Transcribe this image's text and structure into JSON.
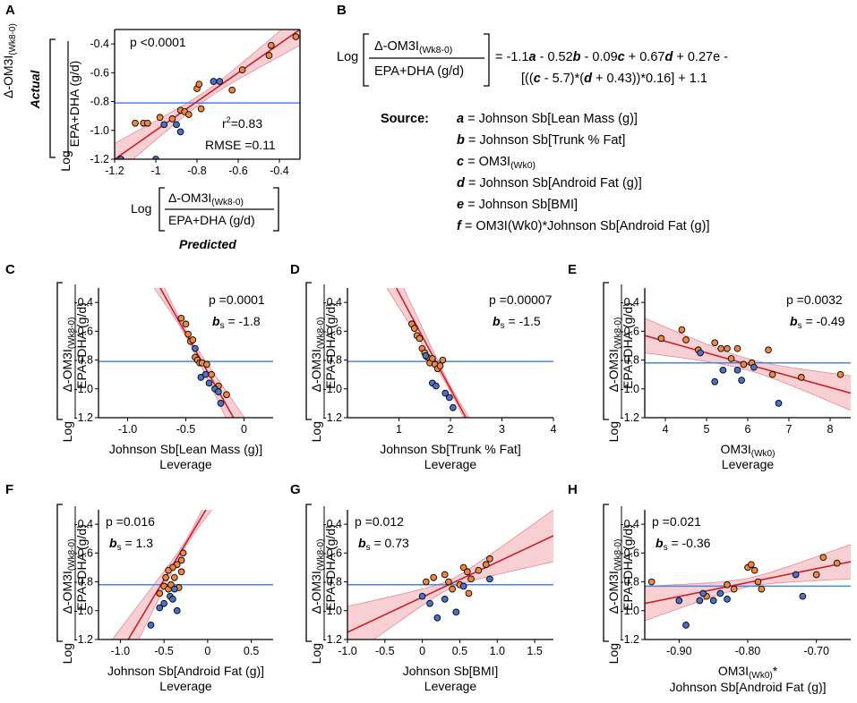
{
  "colors": {
    "orange": "#f0873c",
    "blue": "#4a72c9",
    "fit": "#c8202a",
    "band": "#f7c8cc",
    "mean": "#4a86e0"
  },
  "panel_a": {
    "letter": "A",
    "ylabel_italic": "Actual",
    "log_label": "Log",
    "ratio_num": "Δ-OM3I",
    "ratio_sub": "(Wk8-0)",
    "ratio_den": "EPA+DHA (g/d)",
    "p_text": "p <0.0001",
    "r2_text": "r",
    "r2_sup": "2",
    "r2_value": "=0.83",
    "rmse_text": "RMSE =0.11",
    "xlabel_italic": "Predicted"
  },
  "panel_b": {
    "letter": "B",
    "log_label": "Log",
    "ratio_num": "Δ-OM3I",
    "ratio_sub": "(Wk8-0)",
    "ratio_den": "EPA+DHA (g/d)",
    "eq_line1_parts": [
      "= -1.1",
      "a",
      " - 0.52",
      "b",
      " - 0.09",
      "c",
      " + 0.67",
      "d",
      " + 0.27e -"
    ],
    "eq_line2_parts": [
      "[((",
      "c",
      " - 5.7)*(",
      "d",
      " + 0.43))*0.16] + 1.1"
    ],
    "source_label": "Source:",
    "sources": [
      {
        "var": "a",
        "text": " = Johnson Sb[Lean Mass (g)]",
        "sub": ""
      },
      {
        "var": "b",
        "text": " = Johnson Sb[Trunk % Fat]",
        "sub": ""
      },
      {
        "var": "c",
        "text": " = OM3I",
        "sub": "(Wk0)"
      },
      {
        "var": "d",
        "text": " = Johnson Sb[Android Fat (g)]",
        "sub": ""
      },
      {
        "var": "e",
        "text": " = Johnson Sb[BMI]",
        "sub": ""
      },
      {
        "var": "f",
        "text": " = OM3I(Wk0)*Johnson Sb[Android Fat (g)]",
        "sub": ""
      }
    ]
  },
  "leverage_panels": {
    "ylabel_log": "Log",
    "ylabel_num": "Δ-OM3I",
    "ylabel_sub": "(Wk8-0)",
    "ylabel_den": "EPA+DHA (g/d)",
    "leverage_word": "Leverage",
    "bs_label": "b",
    "bs_sub": "s"
  },
  "chart_data": [
    {
      "id": "A",
      "type": "scatter",
      "xlabel": "Log [Δ-OM3I(Wk8-0) / EPA+DHA (g/d)] Predicted",
      "ylabel": "Actual Log [Δ-OM3I(Wk8-0) / EPA+DHA (g/d)]",
      "xlim": [
        -1.2,
        -0.3
      ],
      "ylim": [
        -1.2,
        -0.3
      ],
      "xticks": [
        -1.2,
        -1,
        -0.8,
        -0.6,
        -0.4
      ],
      "xticklabels": [
        "-1.2",
        "-1",
        "-0.8",
        "-0.6",
        "-0.4"
      ],
      "yticks": [
        -0.4,
        -0.6,
        -0.8,
        -1.0,
        -1.2
      ],
      "yticklabels": [
        "-0.4",
        "-0.6",
        "-0.8",
        "-1.0",
        "-1.2"
      ],
      "mean_line": -0.81,
      "fit": [
        [
          -1.2,
          -1.2
        ],
        [
          -0.3,
          -0.3
        ]
      ],
      "band_halfwidth_mid": 0.03,
      "band_halfwidth_end": 0.11,
      "points_orange": [
        [
          -1.1,
          -0.95
        ],
        [
          -1.06,
          -0.95
        ],
        [
          -1.04,
          -0.95
        ],
        [
          -0.98,
          -0.91
        ],
        [
          -0.92,
          -0.92
        ],
        [
          -0.88,
          -0.86
        ],
        [
          -0.86,
          -0.87
        ],
        [
          -0.84,
          -0.89
        ],
        [
          -0.8,
          -0.71
        ],
        [
          -0.79,
          -0.68
        ],
        [
          -0.78,
          -0.85
        ],
        [
          -0.63,
          -0.72
        ],
        [
          -0.58,
          -0.58
        ],
        [
          -0.45,
          -0.48
        ],
        [
          -0.44,
          -0.41
        ],
        [
          -0.32,
          -0.35
        ]
      ],
      "points_blue": [
        [
          -1.17,
          -1.2
        ],
        [
          -1.0,
          -1.2
        ],
        [
          -0.96,
          -0.96
        ],
        [
          -0.9,
          -0.96
        ],
        [
          -0.88,
          -1.01
        ],
        [
          -0.72,
          -0.66
        ],
        [
          -0.69,
          -0.66
        ]
      ]
    },
    {
      "id": "C",
      "type": "scatter",
      "xlabel": "Johnson Sb[Lean Mass (g)]",
      "xlim": [
        -1.25,
        0.25
      ],
      "ylim": [
        -1.2,
        -0.3
      ],
      "xticks": [
        -1.0,
        -0.5,
        0
      ],
      "xticklabels": [
        "-1.0",
        "-0.5",
        "0"
      ],
      "yticks": [
        -0.4,
        -0.6,
        -0.8,
        -1.0,
        -1.2
      ],
      "yticklabels": [
        "-0.4",
        "-0.6",
        "-0.8",
        "-1.0",
        "-1.2"
      ],
      "mean_line": -0.81,
      "fit": [
        [
          -0.72,
          -0.3
        ],
        [
          -0.09,
          -1.2
        ]
      ],
      "p_text": "p =0.0001",
      "bs_value": "= -1.8",
      "stat_side": "right",
      "band_halfwidth_mid": 0.02,
      "band_halfwidth_end": 0.2,
      "points_orange": [
        [
          -0.54,
          -0.51
        ],
        [
          -0.5,
          -0.55
        ],
        [
          -0.48,
          -0.62
        ],
        [
          -0.46,
          -0.67
        ],
        [
          -0.44,
          -0.66
        ],
        [
          -0.42,
          -0.78
        ],
        [
          -0.4,
          -0.8
        ],
        [
          -0.38,
          -0.82
        ],
        [
          -0.36,
          -0.82
        ],
        [
          -0.32,
          -0.83
        ],
        [
          -0.28,
          -0.9
        ],
        [
          -0.22,
          -0.98
        ],
        [
          -0.15,
          -1.04
        ]
      ],
      "points_blue": [
        [
          -0.42,
          -0.72
        ],
        [
          -0.37,
          -0.92
        ],
        [
          -0.33,
          -0.9
        ],
        [
          -0.3,
          -0.96
        ],
        [
          -0.25,
          -1.0
        ],
        [
          -0.22,
          -1.02
        ],
        [
          -0.2,
          -1.1
        ]
      ]
    },
    {
      "id": "D",
      "type": "scatter",
      "xlabel": "Johnson Sb[Trunk % Fat]",
      "xlim": [
        0,
        4
      ],
      "ylim": [
        -1.2,
        -0.3
      ],
      "xticks": [
        1,
        2,
        3,
        4
      ],
      "xticklabels": [
        "1",
        "2",
        "3",
        "4"
      ],
      "yticks": [
        -0.4,
        -0.6,
        -0.8,
        -1.0,
        -1.2
      ],
      "yticklabels": [
        "-0.4",
        "-0.6",
        "-0.8",
        "-1.0",
        "-1.2"
      ],
      "mean_line": -0.81,
      "fit": [
        [
          0.95,
          -0.3
        ],
        [
          2.3,
          -1.2
        ]
      ],
      "p_text": "p =0.00007",
      "bs_value": "= -1.5",
      "stat_side": "right",
      "band_halfwidth_mid": 0.02,
      "band_halfwidth_end": 0.2,
      "points_orange": [
        [
          1.25,
          -0.55
        ],
        [
          1.3,
          -0.58
        ],
        [
          1.35,
          -0.63
        ],
        [
          1.4,
          -0.65
        ],
        [
          1.45,
          -0.72
        ],
        [
          1.5,
          -0.75
        ],
        [
          1.55,
          -0.78
        ],
        [
          1.6,
          -0.82
        ],
        [
          1.65,
          -0.79
        ],
        [
          1.7,
          -0.83
        ],
        [
          1.75,
          -0.86
        ],
        [
          1.8,
          -0.84
        ],
        [
          1.85,
          -0.8
        ]
      ],
      "points_blue": [
        [
          1.52,
          -0.77
        ],
        [
          1.65,
          -0.96
        ],
        [
          1.72,
          -0.98
        ],
        [
          1.9,
          -1.03
        ],
        [
          1.98,
          -1.06
        ],
        [
          2.05,
          -1.13
        ]
      ]
    },
    {
      "id": "E",
      "type": "scatter",
      "xlabel": "OM3I(Wk0)",
      "xlim": [
        3.5,
        8.5
      ],
      "ylim": [
        -1.2,
        -0.3
      ],
      "xticks": [
        4,
        5,
        6,
        7,
        8
      ],
      "xticklabels": [
        "4",
        "5",
        "6",
        "7",
        "8"
      ],
      "yticks": [
        -0.4,
        -0.6,
        -0.8,
        -1.0,
        -1.2
      ],
      "yticklabels": [
        "-0.4",
        "-0.6",
        "-0.8",
        "-1.0",
        "-1.2"
      ],
      "mean_line": -0.82,
      "fit": [
        [
          3.5,
          -0.63
        ],
        [
          8.5,
          -1.03
        ]
      ],
      "p_text": "p =0.0032",
      "bs_value": "= -0.49",
      "stat_side": "right",
      "band_halfwidth_mid": 0.04,
      "band_halfwidth_end": 0.12,
      "points_orange": [
        [
          3.9,
          -0.65
        ],
        [
          4.4,
          -0.59
        ],
        [
          4.5,
          -0.66
        ],
        [
          4.8,
          -0.73
        ],
        [
          5.2,
          -0.68
        ],
        [
          5.35,
          -0.72
        ],
        [
          5.5,
          -0.72
        ],
        [
          5.6,
          -0.79
        ],
        [
          5.75,
          -0.72
        ],
        [
          5.9,
          -0.83
        ],
        [
          6.1,
          -0.82
        ],
        [
          6.5,
          -0.73
        ],
        [
          6.6,
          -0.9
        ],
        [
          7.3,
          -0.92
        ],
        [
          8.25,
          -0.9
        ]
      ],
      "points_blue": [
        [
          4.85,
          -0.75
        ],
        [
          5.2,
          -0.95
        ],
        [
          5.4,
          -0.87
        ],
        [
          5.75,
          -0.87
        ],
        [
          5.85,
          -0.94
        ],
        [
          6.15,
          -0.85
        ],
        [
          6.75,
          -1.1
        ]
      ]
    },
    {
      "id": "F",
      "type": "scatter",
      "xlabel": "Johnson Sb[Android Fat (g)]",
      "xlim": [
        -1.25,
        0.75
      ],
      "ylim": [
        -1.2,
        -0.3
      ],
      "xticks": [
        -1.0,
        -0.5,
        0,
        0.5
      ],
      "xticklabels": [
        "-1.0",
        "-0.5",
        "0",
        "0.5"
      ],
      "yticks": [
        -0.4,
        -0.6,
        -0.8,
        -1.0,
        -1.2
      ],
      "yticklabels": [
        "-0.4",
        "-0.6",
        "-0.8",
        "-1.0",
        "-1.2"
      ],
      "mean_line": -0.82,
      "fit": [
        [
          -0.91,
          -1.2
        ],
        [
          -0.02,
          -0.3
        ]
      ],
      "p_text": "p =0.016",
      "bs_value": "= 1.3",
      "stat_side": "left",
      "band_halfwidth_mid": 0.02,
      "band_halfwidth_end": 0.22,
      "points_orange": [
        [
          -0.28,
          -0.6
        ],
        [
          -0.3,
          -0.65
        ],
        [
          -0.35,
          -0.68
        ],
        [
          -0.4,
          -0.7
        ],
        [
          -0.45,
          -0.72
        ],
        [
          -0.3,
          -0.73
        ],
        [
          -0.38,
          -0.77
        ],
        [
          -0.5,
          -0.83
        ],
        [
          -0.45,
          -0.85
        ],
        [
          -0.55,
          -0.88
        ],
        [
          -0.33,
          -0.84
        ],
        [
          -0.42,
          -0.82
        ],
        [
          -0.48,
          -0.77
        ]
      ],
      "points_blue": [
        [
          -0.38,
          -0.85
        ],
        [
          -0.43,
          -0.9
        ],
        [
          -0.5,
          -0.95
        ],
        [
          -0.55,
          -0.98
        ],
        [
          -0.65,
          -1.1
        ],
        [
          -0.4,
          -0.92
        ],
        [
          -0.35,
          -1.0
        ]
      ]
    },
    {
      "id": "G",
      "type": "scatter",
      "xlabel": "Johnson Sb[BMI]",
      "xlim": [
        -1.0,
        1.75
      ],
      "ylim": [
        -1.2,
        -0.3
      ],
      "xticks": [
        -1.0,
        -0.5,
        0,
        0.5,
        1.0,
        1.5
      ],
      "xticklabels": [
        "-1.0",
        "-0.5",
        "0",
        "0.5",
        "1.0",
        "1.5"
      ],
      "yticks": [
        -0.4,
        -0.6,
        -0.8,
        -1.0,
        -1.2
      ],
      "yticklabels": [
        "-0.4",
        "-0.6",
        "-0.8",
        "-1.0",
        "-1.2"
      ],
      "mean_line": -0.82,
      "fit": [
        [
          -1.0,
          -1.15
        ],
        [
          1.75,
          -0.48
        ]
      ],
      "p_text": "p =0.012",
      "bs_value": "= 0.73",
      "stat_side": "left",
      "band_halfwidth_mid": 0.03,
      "band_halfwidth_end": 0.18,
      "points_orange": [
        [
          0.05,
          -0.8
        ],
        [
          0.15,
          -0.77
        ],
        [
          0.3,
          -0.75
        ],
        [
          0.35,
          -0.8
        ],
        [
          0.4,
          -0.85
        ],
        [
          0.5,
          -0.82
        ],
        [
          0.55,
          -0.7
        ],
        [
          0.6,
          -0.73
        ],
        [
          0.65,
          -0.78
        ],
        [
          0.75,
          -0.72
        ],
        [
          0.85,
          -0.68
        ],
        [
          0.9,
          -0.64
        ],
        [
          0.62,
          -0.88
        ]
      ],
      "points_blue": [
        [
          0.0,
          -0.9
        ],
        [
          0.1,
          -0.95
        ],
        [
          0.2,
          -1.05
        ],
        [
          0.3,
          -0.92
        ],
        [
          0.45,
          -1.01
        ],
        [
          0.55,
          -0.83
        ],
        [
          0.9,
          -0.78
        ]
      ]
    },
    {
      "id": "H",
      "type": "scatter",
      "xlabel": "OM3I(Wk0)* Johnson Sb[Android Fat (g)]",
      "xlim": [
        -0.95,
        -0.65
      ],
      "ylim": [
        -1.2,
        -0.3
      ],
      "xticks": [
        -0.9,
        -0.8,
        -0.7
      ],
      "xticklabels": [
        "-0.90",
        "-0.80",
        "-0.70"
      ],
      "yticks": [
        -0.4,
        -0.6,
        -0.8,
        -1.0,
        -1.2
      ],
      "yticklabels": [
        "-0.4",
        "-0.6",
        "-0.8",
        "-1.0",
        "-1.2"
      ],
      "mean_line": -0.83,
      "fit": [
        [
          -0.95,
          -0.95
        ],
        [
          -0.65,
          -0.66
        ]
      ],
      "p_text": "p =0.021",
      "bs_value": "= -0.36",
      "stat_side": "left",
      "band_halfwidth_mid": 0.03,
      "band_halfwidth_end": 0.12,
      "points_orange": [
        [
          -0.94,
          -0.8
        ],
        [
          -0.86,
          -0.9
        ],
        [
          -0.83,
          -0.82
        ],
        [
          -0.82,
          -0.85
        ],
        [
          -0.8,
          -0.7
        ],
        [
          -0.795,
          -0.68
        ],
        [
          -0.79,
          -0.72
        ],
        [
          -0.785,
          -0.8
        ],
        [
          -0.78,
          -0.85
        ],
        [
          -0.7,
          -0.75
        ],
        [
          -0.69,
          -0.63
        ],
        [
          -0.67,
          -0.67
        ]
      ],
      "points_blue": [
        [
          -0.9,
          -0.93
        ],
        [
          -0.89,
          -1.1
        ],
        [
          -0.87,
          -0.93
        ],
        [
          -0.865,
          -0.88
        ],
        [
          -0.85,
          -0.93
        ],
        [
          -0.84,
          -0.88
        ],
        [
          -0.83,
          -0.92
        ],
        [
          -0.73,
          -0.75
        ],
        [
          -0.72,
          -0.9
        ]
      ]
    }
  ]
}
